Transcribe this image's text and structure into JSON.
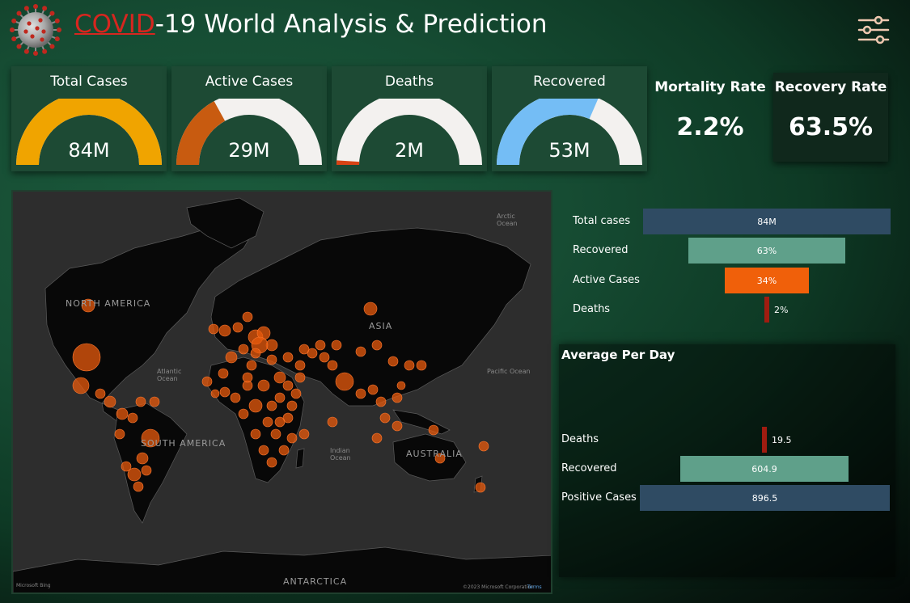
{
  "header": {
    "title_accent": "COVID",
    "title_rest": "-19 World Analysis & Prediction",
    "logo_icon": "coronavirus-icon",
    "filter_icon": "sliders-icon"
  },
  "gauges": [
    {
      "title": "Total Cases",
      "value": "84M",
      "fill_fraction": 1.0,
      "color": "#f0a400"
    },
    {
      "title": "Active Cases",
      "value": "29M",
      "fill_fraction": 0.34,
      "color": "#c85b10"
    },
    {
      "title": "Deaths",
      "value": "2M",
      "fill_fraction": 0.02,
      "color": "#d84315"
    },
    {
      "title": "Recovered",
      "value": "53M",
      "fill_fraction": 0.63,
      "color": "#74bdf5"
    }
  ],
  "kpis": {
    "mortality": {
      "title": "Mortality Rate",
      "value": "2.2%"
    },
    "recovery": {
      "title": "Recovery Rate",
      "value": "63.5%"
    }
  },
  "map": {
    "labels": {
      "north_america": "NORTH AMERICA",
      "south_america": "SOUTH AMERICA",
      "asia": "ASIA",
      "australia": "AUSTRALIA",
      "antarctica": "ANTARCTICA",
      "atlantic": "Atlantic Ocean",
      "pacific": "Pacific Ocean",
      "indian": "Indian Ocean",
      "arctic": "Arctic Ocean",
      "attribution_left": "Microsoft Bing",
      "attribution_right": "©2023 Microsoft Corporation",
      "terms": "Terms"
    },
    "bubble_color": "#e8590c"
  },
  "funnel": {
    "rows": [
      {
        "label": "Total cases",
        "value": "84M",
        "fraction": 1.0,
        "color": "#2f4b63"
      },
      {
        "label": "Recovered",
        "value": "63%",
        "fraction": 0.63,
        "color": "#5fa08a"
      },
      {
        "label": "Active Cases",
        "value": "34%",
        "fraction": 0.34,
        "color": "#f0600a"
      },
      {
        "label": "Deaths",
        "value": "2%",
        "fraction": 0.02,
        "color": "#a01c10"
      }
    ]
  },
  "average_per_day": {
    "title": "Average Per Day",
    "rows": [
      {
        "label": "Deaths",
        "value": "19.5",
        "color": "#a01c10"
      },
      {
        "label": "Recovered",
        "value": "604.9",
        "color": "#5fa08a"
      },
      {
        "label": "Positive Cases",
        "value": "896.5",
        "color": "#2f4b63"
      }
    ]
  }
}
